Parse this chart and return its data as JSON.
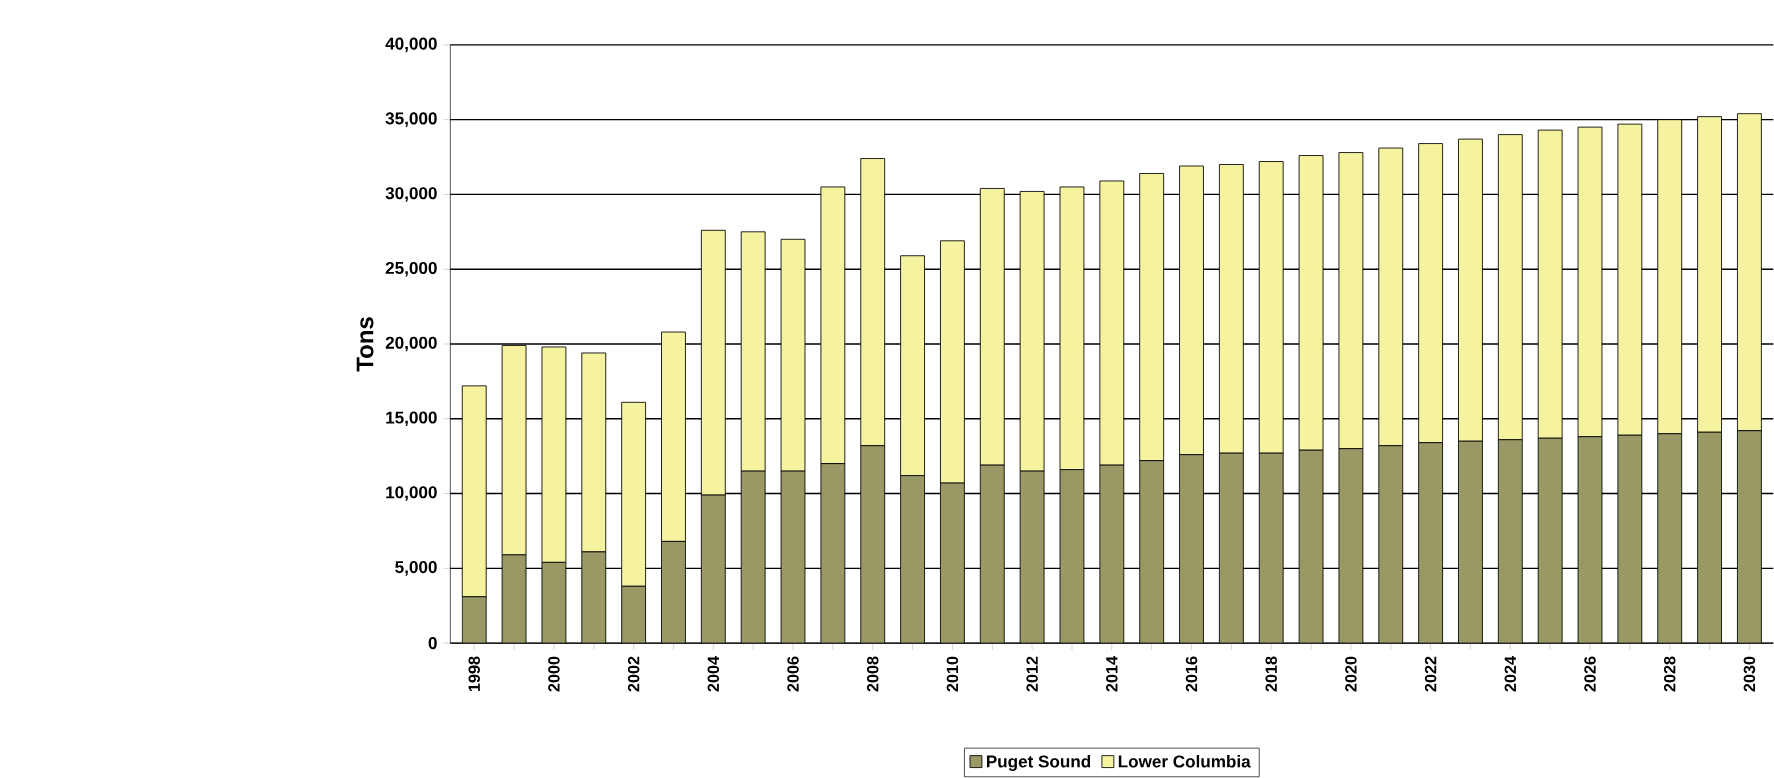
{
  "chart_data": {
    "type": "bar",
    "stacked": true,
    "ylabel": "Tons",
    "categories": [
      "1998",
      null,
      "2000",
      null,
      "2002",
      null,
      "2004",
      null,
      "2006",
      null,
      "2008",
      null,
      "2010",
      null,
      "2012",
      null,
      "2014",
      null,
      "2016",
      null,
      "2018",
      null,
      "2020",
      null,
      "2022",
      null,
      "2024",
      null,
      "2026",
      null,
      "2028",
      null,
      "2030"
    ],
    "series": [
      {
        "name": "Puget Sound",
        "color": "#999966",
        "values": [
          3100,
          5900,
          5400,
          6100,
          3800,
          6800,
          9900,
          11500,
          11500,
          12000,
          13200,
          11200,
          10700,
          11900,
          11500,
          11600,
          11900,
          12200,
          12600,
          12700,
          12700,
          12900,
          13000,
          13200,
          13400,
          13500,
          13600,
          13700,
          13800,
          13900,
          14000,
          14100,
          14200
        ]
      },
      {
        "name": "Lower Columbia",
        "color": "#f5f3a0",
        "values": [
          14100,
          14000,
          14400,
          13300,
          12300,
          14000,
          17700,
          16000,
          15500,
          18500,
          19200,
          14700,
          16200,
          18500,
          18700,
          18900,
          19000,
          19200,
          19300,
          19300,
          19500,
          19700,
          19800,
          19900,
          20000,
          20200,
          20400,
          20600,
          20700,
          20800,
          21000,
          21100,
          21200
        ]
      }
    ],
    "ylim": [
      0,
      40000
    ],
    "yticks": [
      {
        "value": 0,
        "label": "0"
      },
      {
        "value": 5000,
        "label": "5,000"
      },
      {
        "value": 10000,
        "label": "10,000"
      },
      {
        "value": 15000,
        "label": "15,000"
      },
      {
        "value": 20000,
        "label": "20,000"
      },
      {
        "value": 25000,
        "label": "25,000"
      },
      {
        "value": 30000,
        "label": "30,000"
      },
      {
        "value": 35000,
        "label": "35,000"
      },
      {
        "value": 40000,
        "label": "40,000"
      }
    ],
    "grid": "y",
    "legend": "bottom"
  }
}
